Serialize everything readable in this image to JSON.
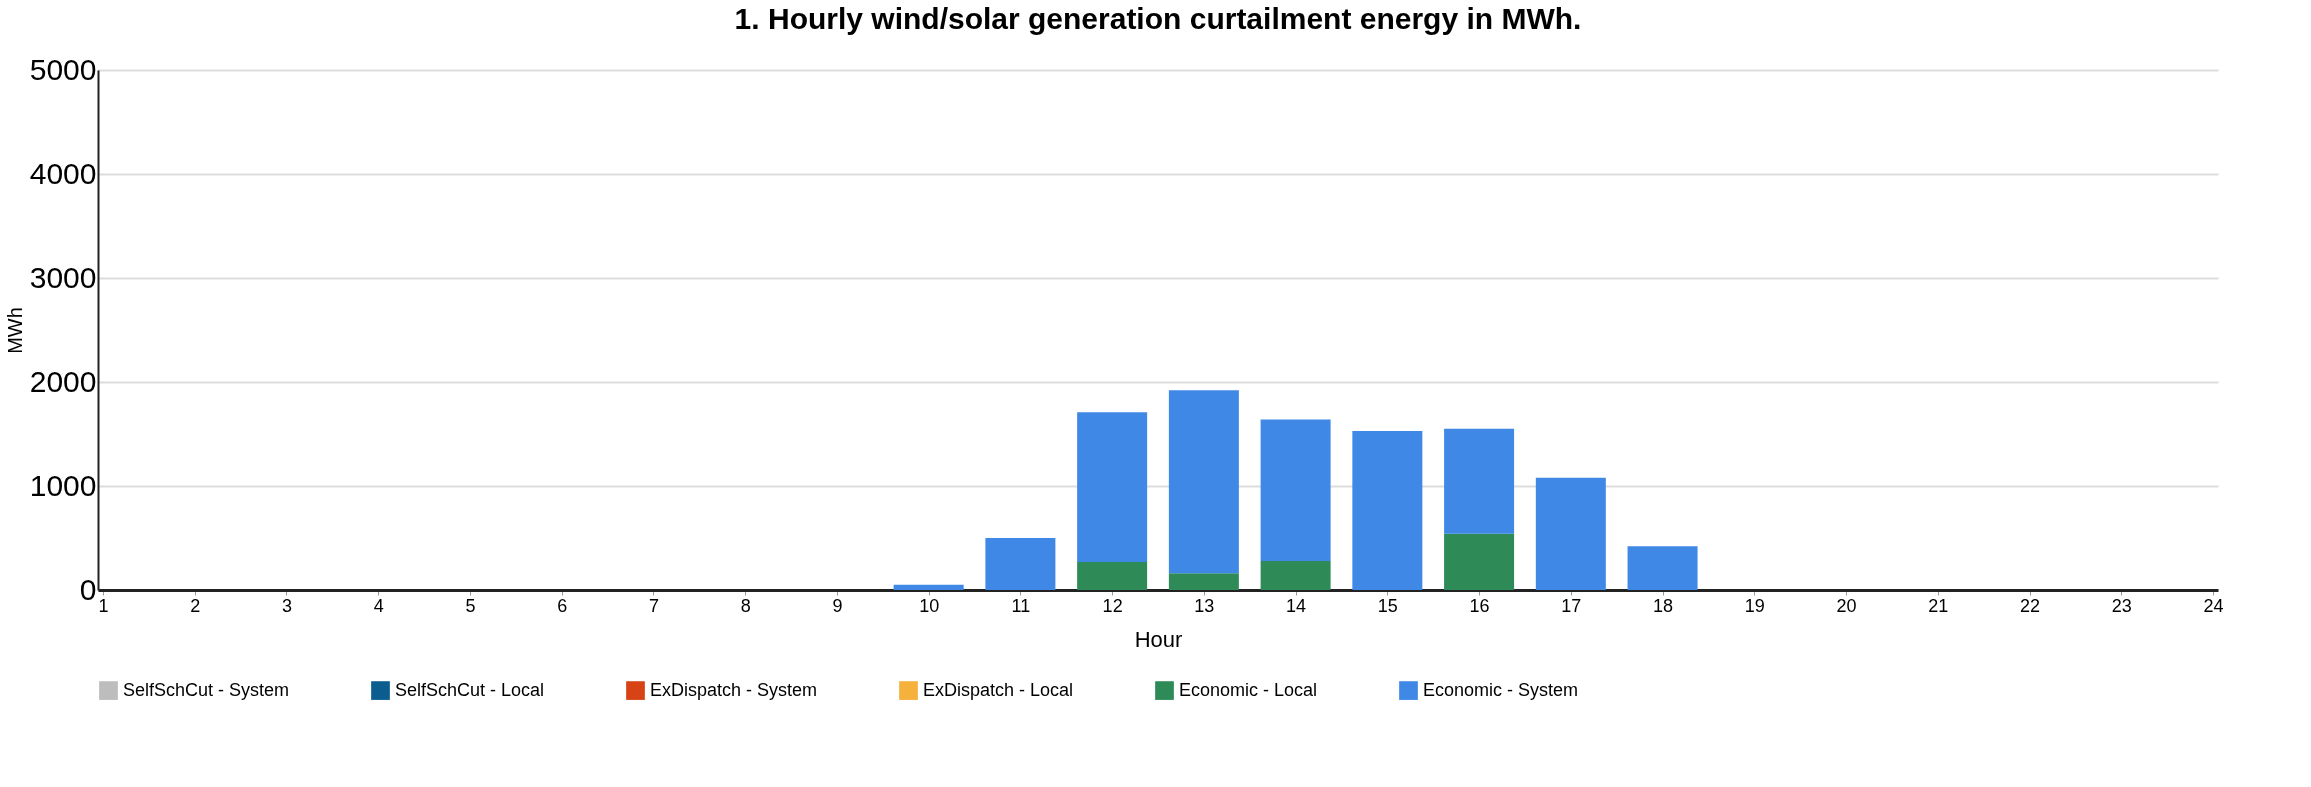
{
  "chart_data": {
    "type": "bar",
    "title": "1.    Hourly wind/solar generation curtailment energy in MWh.",
    "xlabel": "Hour",
    "ylabel": "MWh",
    "x": [
      10,
      11,
      12,
      13,
      14,
      15,
      16,
      17,
      18
    ],
    "stacked": true,
    "series": [
      {
        "name": "SelfSchCut - System",
        "color": "#bdbdbd",
        "values": [
          0,
          0,
          0,
          0,
          0,
          0,
          0,
          0,
          0
        ]
      },
      {
        "name": "SelfSchCut - Local",
        "color": "#0b5d8f",
        "values": [
          0,
          0,
          0,
          0,
          0,
          0,
          0,
          0,
          0
        ]
      },
      {
        "name": "ExDispatch - System",
        "color": "#d84315",
        "values": [
          0,
          0,
          0,
          0,
          0,
          0,
          0,
          0,
          0
        ]
      },
      {
        "name": "ExDispatch - Local",
        "color": "#f6b03c",
        "values": [
          0,
          0,
          0,
          0,
          0,
          0,
          0,
          0,
          0
        ]
      },
      {
        "name": "Economic - Local",
        "color": "#2e8b57",
        "values": [
          0,
          0,
          270,
          160,
          280,
          0,
          540,
          0,
          0
        ]
      },
      {
        "name": "Economic - System",
        "color": "#3f88e6",
        "values": [
          50,
          500,
          1440,
          1760,
          1360,
          1530,
          1010,
          1080,
          420
        ]
      }
    ],
    "xlim": [
      1,
      24
    ],
    "xticks": [
      1,
      2,
      3,
      4,
      5,
      6,
      7,
      8,
      9,
      10,
      11,
      12,
      13,
      14,
      15,
      16,
      17,
      18,
      19,
      20,
      21,
      22,
      23,
      24
    ],
    "ylim": [
      0,
      5000
    ],
    "yticks": [
      0,
      1000,
      2000,
      3000,
      4000,
      5000
    ],
    "grid": "y",
    "legend": "bottom"
  }
}
